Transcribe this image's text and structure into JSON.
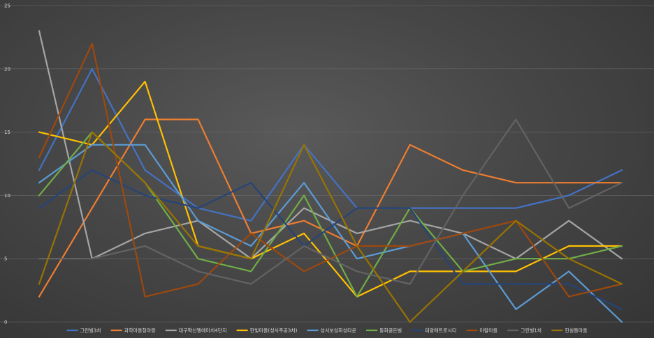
{
  "chart_data": {
    "type": "line",
    "title": "",
    "xlabel": "",
    "ylabel": "",
    "ylim": [
      0,
      25
    ],
    "yticks": [
      "0",
      "5",
      "10",
      "15",
      "20",
      "25"
    ],
    "grid": true,
    "legend_position": "bottom",
    "x_count": 12,
    "series": [
      {
        "name": "그린빌3차",
        "color": "#4472c4",
        "values": [
          12,
          20,
          12,
          9,
          8,
          14,
          9,
          9,
          9,
          9,
          10,
          12
        ]
      },
      {
        "name": "과학마을청아랑",
        "color": "#ed7d31",
        "values": [
          2,
          9,
          16,
          16,
          7,
          8,
          6,
          14,
          12,
          11,
          11,
          11
        ]
      },
      {
        "name": "대구혁신엘에이치4단지",
        "color": "#a5a5a5",
        "values": [
          23,
          5,
          7,
          8,
          5,
          9,
          7,
          8,
          7,
          5,
          8,
          5
        ]
      },
      {
        "name": "한빛마을(성서주공3차)",
        "color": "#ffc000",
        "values": [
          15,
          14,
          19,
          6,
          5,
          7,
          2,
          4,
          4,
          4,
          6,
          6
        ]
      },
      {
        "name": "성서보성화성타운",
        "color": "#5b9bd5",
        "values": [
          11,
          14,
          14,
          8,
          6,
          11,
          5,
          6,
          7,
          1,
          4,
          0
        ]
      },
      {
        "name": "동화골든빌",
        "color": "#70ad47",
        "values": [
          10,
          15,
          11,
          5,
          4,
          10,
          2,
          9,
          4,
          5,
          5,
          6
        ]
      },
      {
        "name": "태왕메트로시티",
        "color": "#264478",
        "values": [
          9,
          12,
          10,
          9,
          11,
          6,
          9,
          9,
          3,
          3,
          3,
          1
        ]
      },
      {
        "name": "아람마을",
        "color": "#9e480e",
        "values": [
          13,
          22,
          2,
          3,
          7,
          4,
          6,
          6,
          7,
          8,
          2,
          3
        ]
      },
      {
        "name": "그린빌1차",
        "color": "#636363",
        "values": [
          5,
          5,
          6,
          4,
          3,
          6,
          4,
          3,
          10,
          16,
          9,
          11
        ]
      },
      {
        "name": "한실들마을",
        "color": "#997300",
        "values": [
          3,
          15,
          11,
          6,
          5,
          14,
          6,
          0,
          4,
          8,
          5,
          3
        ]
      }
    ]
  }
}
